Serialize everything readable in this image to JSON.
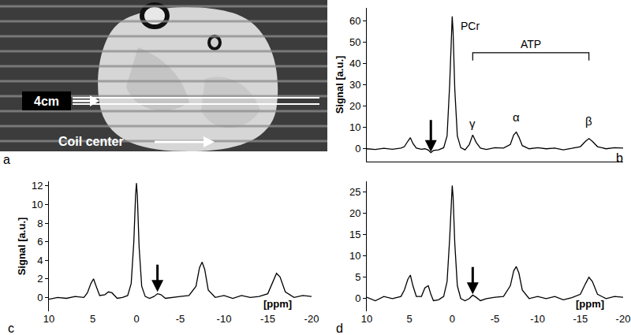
{
  "image_panel": {
    "panel": "a",
    "slice_label": "4cm",
    "coil_label": "Coil center"
  },
  "chart_data": [
    {
      "type": "line",
      "panel": "b",
      "y_label": "Signal [a.u.]",
      "color": "#000000",
      "grid": false,
      "tick_labels": "y",
      "x": [
        10,
        9,
        8,
        7,
        6,
        5.6,
        5.2,
        4.9,
        4.6,
        4.2,
        3.6,
        3.2,
        2.8,
        2.5,
        2.2,
        1.6,
        1,
        0.6,
        0.3,
        0.1,
        0,
        -0.1,
        -0.3,
        -0.6,
        -1,
        -1.5,
        -2,
        -2.4,
        -2.8,
        -3.3,
        -4,
        -5,
        -6,
        -6.8,
        -7.2,
        -7.5,
        -7.8,
        -8.2,
        -9,
        -10,
        -11,
        -12,
        -13,
        -14,
        -15,
        -15.6,
        -16,
        -16.4,
        -17,
        -18,
        -19,
        -20
      ],
      "values": [
        0,
        -0.3,
        0.2,
        -0.2,
        0.3,
        1,
        3.5,
        5.2,
        2.5,
        0.3,
        -0.2,
        0,
        -0.6,
        -1.8,
        -0.8,
        -0.5,
        0.5,
        6,
        30,
        55,
        62,
        55,
        28,
        6,
        0.5,
        -0.5,
        2,
        6.5,
        3,
        0.3,
        -0.3,
        0.5,
        0.3,
        2,
        6.5,
        7.8,
        5.5,
        1.5,
        0,
        0.5,
        0,
        0.3,
        -0.5,
        0.2,
        1,
        3.5,
        4.8,
        3.5,
        1,
        0,
        0.5,
        0.3
      ],
      "xlim": [
        10,
        -20
      ],
      "ylim": [
        -6,
        66
      ],
      "yticks": [
        0,
        10,
        20,
        30,
        40,
        50,
        60
      ],
      "annotations": [
        {
          "text": "PCr",
          "x": -0.8,
          "y": 54
        },
        {
          "text": "γ",
          "x": -2.4,
          "y": 8
        },
        {
          "text": "α",
          "x": -7.5,
          "y": 11
        },
        {
          "text": "β",
          "x": -16,
          "y": 9
        },
        {
          "x": 2.5,
          "y": -1.5,
          "arrow": true
        }
      ],
      "bracket": {
        "text": "ATP",
        "x": [
          -2.4,
          -16
        ],
        "y": 45
      }
    },
    {
      "type": "line",
      "panel": "c",
      "y_label": "Signal [a.u.]",
      "x_label": "[ppm]",
      "color": "#000000",
      "grid": false,
      "x": [
        10,
        9,
        8,
        7,
        6,
        5.6,
        5.2,
        4.9,
        4.6,
        4.2,
        3.6,
        3.2,
        2.8,
        2.5,
        2.2,
        1.6,
        1,
        0.6,
        0.3,
        0.1,
        0,
        -0.1,
        -0.3,
        -0.6,
        -1,
        -1.5,
        -2,
        -2.4,
        -2.8,
        -3.3,
        -4,
        -5,
        -6,
        -6.8,
        -7.2,
        -7.5,
        -7.8,
        -8.2,
        -9,
        -10,
        -11,
        -12,
        -13,
        -14,
        -15,
        -15.6,
        -16,
        -16.4,
        -17,
        -18,
        -19,
        -20
      ],
      "values": [
        -0.2,
        0,
        -0.1,
        0.1,
        0,
        0.5,
        1.5,
        2,
        1.2,
        0.2,
        0.3,
        0.6,
        0.5,
        0.2,
        -0.1,
        0,
        0.2,
        1.5,
        6,
        11,
        12.3,
        11,
        5.5,
        1.2,
        0.1,
        -0.1,
        0.1,
        0.4,
        0.3,
        -0.1,
        0,
        0.1,
        0.2,
        1.2,
        3.2,
        3.8,
        3,
        0.8,
        0,
        0.2,
        -0.1,
        0.2,
        0,
        0.1,
        0.4,
        1.8,
        2.6,
        2.2,
        0.6,
        0,
        0.2,
        0.1
      ],
      "xlim": [
        10,
        -20
      ],
      "xticks": [
        10,
        5,
        0,
        -5,
        -10,
        -15,
        -20
      ],
      "ylim": [
        -1.5,
        12.5
      ],
      "yticks": [
        0,
        2,
        4,
        6,
        8,
        10,
        12
      ],
      "annotations": [
        {
          "x": -2.4,
          "y": 0.6,
          "arrow": true
        }
      ]
    },
    {
      "type": "line",
      "panel": "d",
      "x_label": "[ppm]",
      "color": "#000000",
      "grid": false,
      "x": [
        10,
        9,
        8,
        7,
        6,
        5.6,
        5.2,
        4.9,
        4.6,
        4.2,
        3.6,
        3.2,
        2.8,
        2.5,
        2.2,
        1.6,
        1,
        0.6,
        0.3,
        0.1,
        0,
        -0.1,
        -0.3,
        -0.6,
        -1,
        -1.5,
        -2,
        -2.4,
        -2.8,
        -3.3,
        -4,
        -5,
        -6,
        -6.8,
        -7.2,
        -7.5,
        -7.8,
        -8.2,
        -9,
        -10,
        -11,
        -12,
        -13,
        -14,
        -15,
        -15.6,
        -16,
        -16.4,
        -17,
        -18,
        -19,
        -20
      ],
      "values": [
        0.3,
        -0.5,
        0.5,
        0,
        0.5,
        2,
        4.5,
        5.5,
        3,
        0.5,
        0.5,
        2.5,
        3,
        1,
        -0.5,
        -0.3,
        0.5,
        4,
        14,
        24,
        26.5,
        24,
        13,
        3,
        0,
        -0.5,
        0,
        0.8,
        0.3,
        -0.5,
        0,
        0.3,
        0.5,
        3,
        6.5,
        7.5,
        6,
        2,
        0,
        0.5,
        0,
        0.5,
        -0.3,
        0.2,
        1,
        3.5,
        5,
        4,
        1,
        0,
        0.5,
        0.3
      ],
      "xlim": [
        10,
        -20
      ],
      "xticks": [
        10,
        5,
        0,
        -5,
        -10,
        -15,
        -20
      ],
      "ylim": [
        -3,
        27.5
      ],
      "yticks": [
        0,
        5,
        10,
        15,
        20,
        25
      ],
      "annotations": [
        {
          "x": -2.4,
          "y": 1,
          "arrow": true
        }
      ]
    }
  ]
}
